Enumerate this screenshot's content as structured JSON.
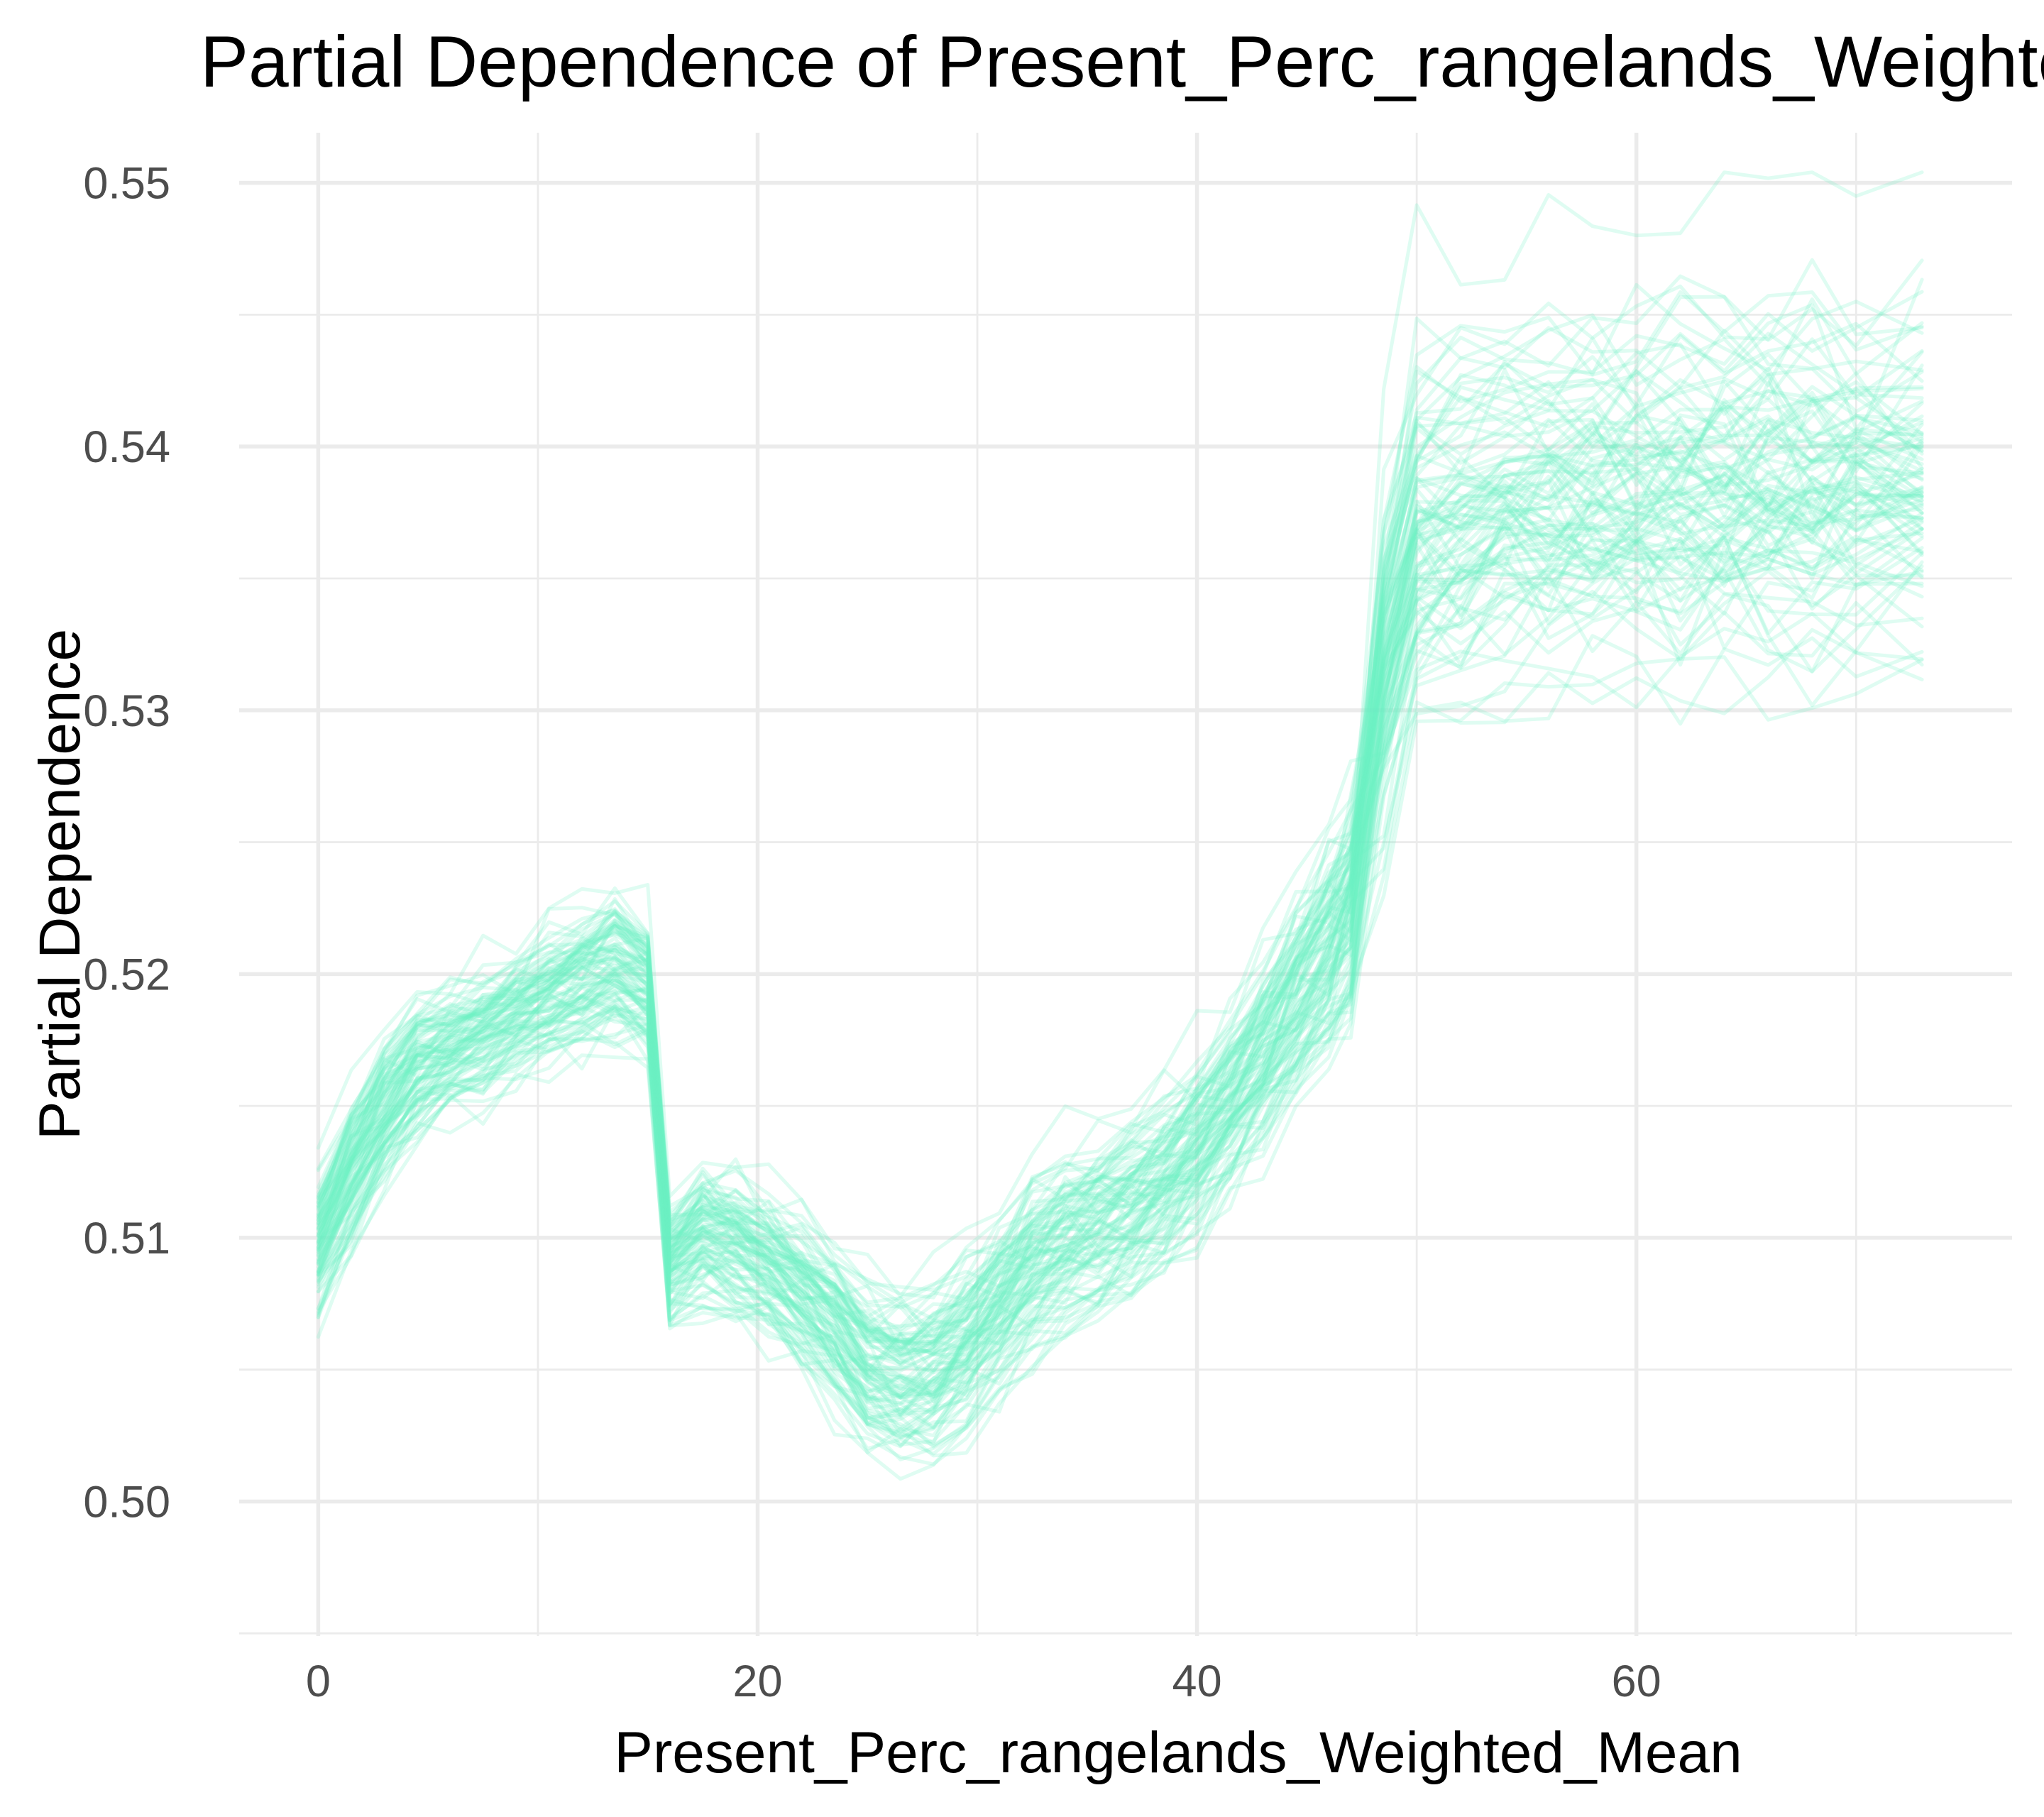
{
  "chart_data": {
    "type": "line",
    "title": "Partial Dependence of Present_Perc_rangelands_Weighted_Mean",
    "xlabel": "Present_Perc_rangelands_Weighted_Mean",
    "ylabel": "Partial Dependence",
    "xlim": [
      -3.6,
      77.1
    ],
    "ylim": [
      0.4949,
      0.5519
    ],
    "x_ticks": [
      0,
      20,
      40,
      60
    ],
    "x_tick_labels": [
      "0",
      "20",
      "40",
      "60"
    ],
    "x_minor_ticks": [
      10,
      30,
      50,
      70
    ],
    "y_ticks": [
      0.5,
      0.51,
      0.52,
      0.53,
      0.54,
      0.55
    ],
    "y_tick_labels": [
      "0.50",
      "0.51",
      "0.52",
      "0.53",
      "0.54",
      "0.55"
    ],
    "y_minor_ticks": [
      0.495,
      0.505,
      0.515,
      0.525,
      0.535,
      0.545
    ],
    "grid": true,
    "legend": "none",
    "line_color": "#6ff0c4",
    "line_opacity": 0.22,
    "x": [
      0,
      1.5,
      3,
      4.5,
      6,
      7.5,
      9,
      10.5,
      12,
      13.5,
      15,
      16,
      17.5,
      19,
      20.5,
      22,
      23.5,
      25,
      26.5,
      28,
      29.5,
      31,
      32.5,
      34,
      35.5,
      37,
      38.5,
      40,
      41.5,
      43,
      44.5,
      46,
      47,
      48.5,
      50,
      52,
      54,
      56,
      58,
      60,
      62,
      64,
      66,
      68,
      70,
      73
    ],
    "mean_curve": [
      0.5098,
      0.5125,
      0.5148,
      0.5165,
      0.5172,
      0.5178,
      0.5185,
      0.5192,
      0.5198,
      0.5203,
      0.5195,
      0.509,
      0.5102,
      0.5098,
      0.509,
      0.508,
      0.5068,
      0.5052,
      0.5047,
      0.505,
      0.5062,
      0.5075,
      0.509,
      0.51,
      0.5105,
      0.5112,
      0.5122,
      0.5135,
      0.5152,
      0.517,
      0.519,
      0.521,
      0.5225,
      0.531,
      0.5362,
      0.5368,
      0.5372,
      0.5376,
      0.5378,
      0.538,
      0.5381,
      0.5381,
      0.5381,
      0.5381,
      0.5381,
      0.5381
    ],
    "mean_spread": [
      0.0014,
      0.0015,
      0.0014,
      0.0013,
      0.0012,
      0.0012,
      0.0012,
      0.0013,
      0.0013,
      0.0014,
      0.0013,
      0.0012,
      0.0013,
      0.0014,
      0.0014,
      0.0015,
      0.0015,
      0.0015,
      0.0016,
      0.0016,
      0.0017,
      0.0017,
      0.0017,
      0.0017,
      0.0017,
      0.0017,
      0.0017,
      0.0018,
      0.0018,
      0.0019,
      0.002,
      0.0022,
      0.0023,
      0.003,
      0.0032,
      0.0032,
      0.0032,
      0.0032,
      0.0032,
      0.0032,
      0.0032,
      0.0032,
      0.0032,
      0.0032,
      0.0032,
      0.0032
    ],
    "n_lines": 100
  }
}
